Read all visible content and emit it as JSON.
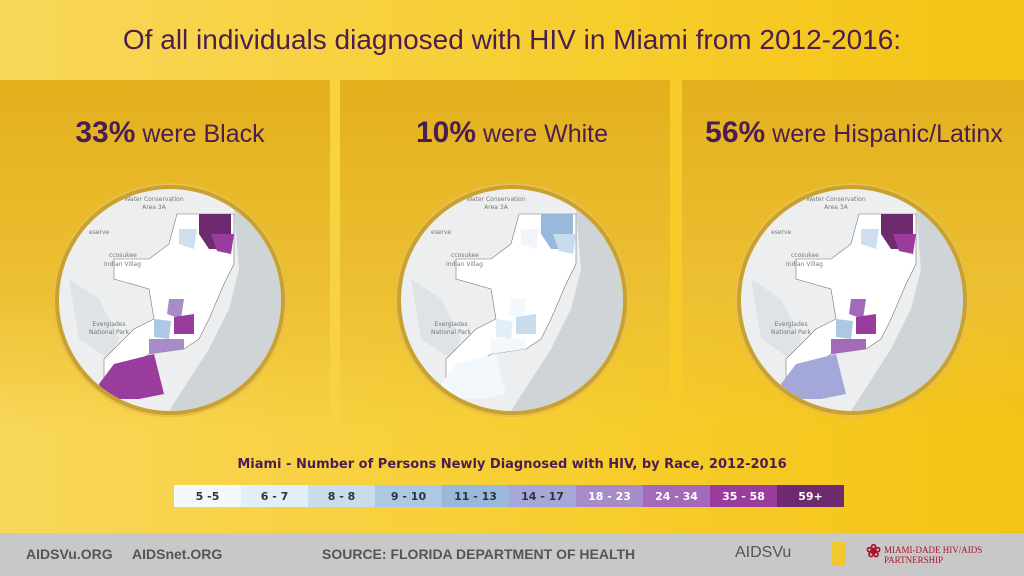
{
  "title": "Of all individuals diagnosed with HIV in Miami from 2012-2016:",
  "panels": [
    {
      "pct": "33%",
      "text": " were Black"
    },
    {
      "pct": "10%",
      "text": " were White"
    },
    {
      "pct": "56%",
      "text": " were Hispanic/Latinx"
    }
  ],
  "map_labels": {
    "area": "Water Conservation",
    "area2": "Area 3A",
    "reserve": "eserve",
    "village1": "ccosukee",
    "village2": "Indian Villag",
    "park1": "Everglades",
    "park2": "National Park"
  },
  "legend": {
    "title": "Miami - Number of Persons Newly Diagnosed with HIV, by Race, 2012-2016",
    "bins": [
      {
        "label": "5 -5",
        "color": "#f3f8fc",
        "text": "#333"
      },
      {
        "label": "6 - 7",
        "color": "#e2eef8",
        "text": "#333"
      },
      {
        "label": "8 - 8",
        "color": "#c8dcee",
        "text": "#333"
      },
      {
        "label": "9 - 10",
        "color": "#acc8e4",
        "text": "#333"
      },
      {
        "label": "11 - 13",
        "color": "#98b8dc",
        "text": "#333"
      },
      {
        "label": "14 - 17",
        "color": "#a4a8d8",
        "text": "#333"
      },
      {
        "label": "18 - 23",
        "color": "#a88cc8",
        "text": "#fff"
      },
      {
        "label": "24 - 34",
        "color": "#a26ab8",
        "text": "#fff"
      },
      {
        "label": "35 - 58",
        "color": "#9a3c9e",
        "text": "#fff"
      },
      {
        "label": "59+",
        "color": "#6e2a6e",
        "text": "#fff"
      }
    ]
  },
  "footer": {
    "link1": "AIDSVu.ORG",
    "link2": "AIDSnet.ORG",
    "source": "SOURCE: FLORIDA DEPARTMENT OF HEALTH",
    "logo1": "AIDSVu",
    "logo2": "MIAMI-DADE HIV/AIDS PARTNERSHIP"
  }
}
